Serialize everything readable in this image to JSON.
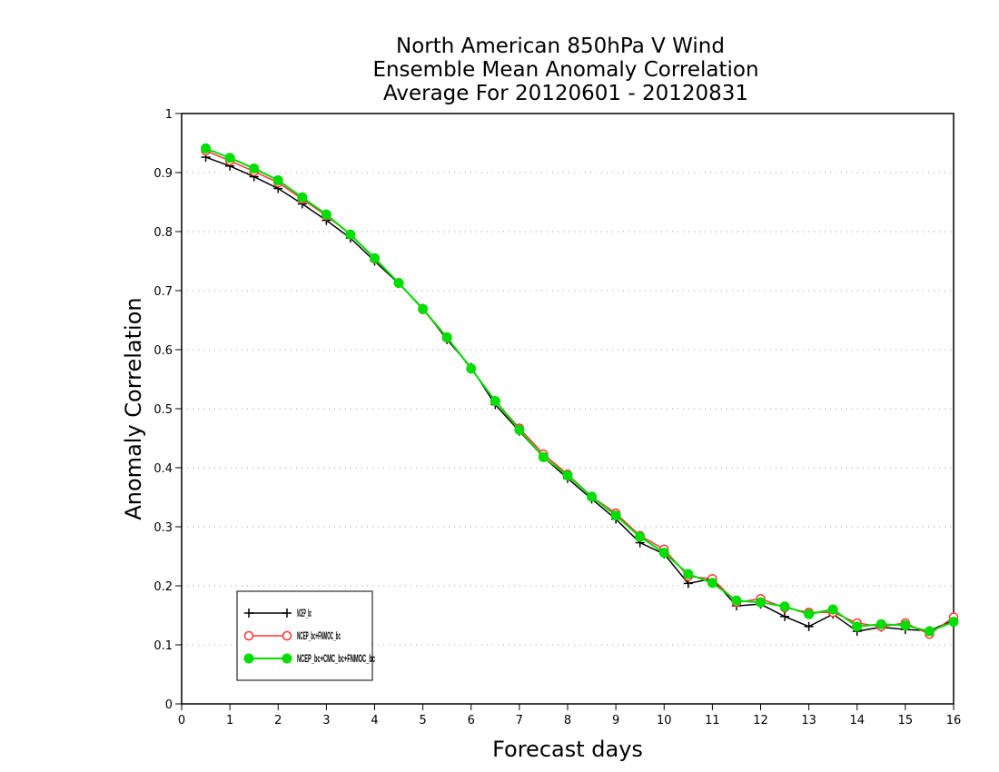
{
  "chart_data": {
    "type": "line",
    "title": [
      "North American 850hPa V Wind",
      "Ensemble Mean Anomaly Correlation",
      "Average For 20120601 - 20120831"
    ],
    "xlabel": "Forecast days",
    "ylabel": "Anomaly Correlation",
    "xlim": [
      0,
      16
    ],
    "ylim": [
      0,
      1
    ],
    "xticks": [
      "0",
      "1",
      "2",
      "3",
      "4",
      "5",
      "6",
      "7",
      "8",
      "9",
      "10",
      "11",
      "12",
      "13",
      "14",
      "15",
      "16"
    ],
    "yticks": [
      "0",
      "0.1",
      "0.2",
      "0.3",
      "0.4",
      "0.5",
      "0.6",
      "0.7",
      "0.8",
      "0.9",
      "1"
    ],
    "grid": "horizontal dotted",
    "legend_position": "bottom-left",
    "x": [
      0.5,
      1,
      1.5,
      2,
      2.5,
      3,
      3.5,
      4,
      4.5,
      5,
      5.5,
      6,
      6.5,
      7,
      7.5,
      8,
      8.5,
      9,
      9.5,
      10,
      10.5,
      11,
      11.5,
      12,
      12.5,
      13,
      13.5,
      14,
      14.5,
      15,
      15.5,
      16
    ],
    "series": [
      {
        "name": "NCEP_bc",
        "color": "#000000",
        "marker": "plus",
        "values": [
          0.926,
          0.911,
          0.893,
          0.873,
          0.847,
          0.819,
          0.789,
          0.75,
          0.712,
          0.67,
          0.617,
          0.57,
          0.507,
          0.462,
          0.418,
          0.382,
          0.347,
          0.313,
          0.273,
          0.254,
          0.204,
          0.212,
          0.166,
          0.169,
          0.148,
          0.131,
          0.152,
          0.123,
          0.13,
          0.126,
          0.124,
          0.142
        ]
      },
      {
        "name": "NCEP_bc+FNMOC_bc",
        "color": "#ff3333",
        "marker": "open-circle",
        "values": [
          0.937,
          0.92,
          0.902,
          0.883,
          0.855,
          0.827,
          0.795,
          0.754,
          0.713,
          0.668,
          0.62,
          0.568,
          0.513,
          0.467,
          0.423,
          0.389,
          0.351,
          0.323,
          0.285,
          0.262,
          0.216,
          0.212,
          0.172,
          0.178,
          0.163,
          0.155,
          0.155,
          0.137,
          0.131,
          0.137,
          0.118,
          0.147
        ]
      },
      {
        "name": "NCEP_bc+CMC_bc+FNMOC_bc",
        "color": "#00dd00",
        "marker": "filled-circle",
        "values": [
          0.941,
          0.925,
          0.907,
          0.887,
          0.858,
          0.829,
          0.795,
          0.755,
          0.713,
          0.669,
          0.621,
          0.568,
          0.513,
          0.464,
          0.418,
          0.387,
          0.351,
          0.319,
          0.283,
          0.256,
          0.22,
          0.205,
          0.175,
          0.172,
          0.165,
          0.152,
          0.16,
          0.131,
          0.135,
          0.133,
          0.123,
          0.139
        ]
      }
    ]
  }
}
